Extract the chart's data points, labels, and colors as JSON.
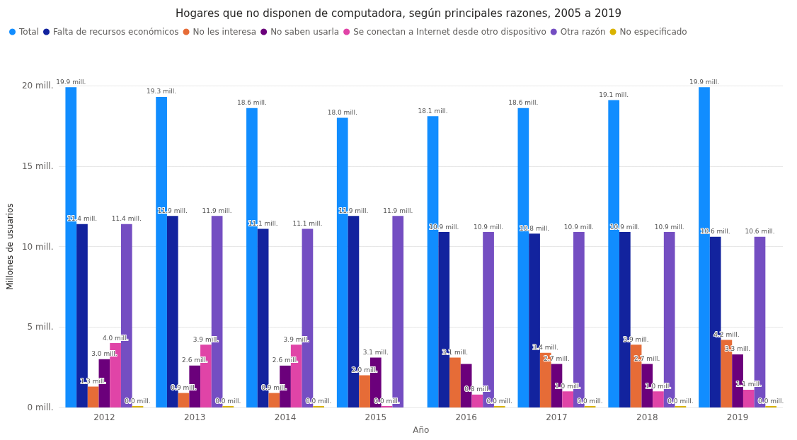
{
  "chart_data": {
    "type": "bar",
    "title": "Hogares que no disponen de computadora, según principales razones, 2005 a 2019",
    "xlabel": "Año",
    "ylabel": "Millones de usuarios",
    "categories": [
      "2012",
      "2013",
      "2014",
      "2015",
      "2016",
      "2017",
      "2018",
      "2019"
    ],
    "ylim": [
      0,
      20
    ],
    "yticks": [
      {
        "value": 0,
        "label": "0 mill."
      },
      {
        "value": 5,
        "label": "5 mill."
      },
      {
        "value": 10,
        "label": "10 mill."
      },
      {
        "value": 15,
        "label": "15 mill."
      },
      {
        "value": 20,
        "label": "20 mill."
      }
    ],
    "grid": "y",
    "legend": "top left",
    "series": [
      {
        "name": "Total",
        "color": "#118dff",
        "values": [
          19.9,
          19.3,
          18.6,
          18.0,
          18.1,
          18.6,
          19.1,
          19.9
        ],
        "value_labels": [
          "19.9 mill.",
          "19.3 mill.",
          "18.6 mill.",
          "18.0 mill.",
          "18.1 mill.",
          "18.6 mill.",
          "19.1 mill.",
          "19.9 mill."
        ]
      },
      {
        "name": "Falta de recursos económicos",
        "color": "#12239e",
        "values": [
          11.4,
          11.9,
          11.1,
          11.9,
          10.9,
          10.8,
          10.9,
          10.6
        ],
        "value_labels": [
          "11.4 mill.",
          "11.9 mill.",
          "11.1 mill.",
          "11.9 mill.",
          "10.9 mill.",
          "10.8 mill.",
          "10.9 mill.",
          "10.6 mill."
        ]
      },
      {
        "name": "No les interesa",
        "color": "#e66c37",
        "values": [
          1.3,
          0.9,
          0.9,
          2.0,
          3.1,
          3.4,
          3.9,
          4.2
        ],
        "value_labels": [
          "1.3 mill.",
          "0.9 mill.",
          "0.9 mill.",
          "2.0 mill.",
          "3.1 mill.",
          "3.4 mill.",
          "3.9 mill.",
          "4.2 mill."
        ]
      },
      {
        "name": "No saben usarla",
        "color": "#6b007b",
        "values": [
          3.0,
          2.6,
          2.6,
          3.1,
          2.7,
          2.7,
          2.7,
          3.3
        ],
        "value_labels": [
          "3.0 mill.",
          "2.6 mill.",
          "2.6 mill.",
          "3.1 mill.",
          null,
          "2.7 mill.",
          "2.7 mill.",
          "3.3 mill."
        ]
      },
      {
        "name": "Se conectan a Internet desde otro dispositivo",
        "color": "#e044a7",
        "values": [
          4.0,
          3.9,
          3.9,
          0.0,
          0.8,
          1.0,
          1.0,
          1.1
        ],
        "value_labels": [
          "4.0 mill.",
          "3.9 mill.",
          "3.9 mill.",
          "0.0 mill.",
          "0.8 mill.",
          "1.0 mill.",
          "1.0 mill.",
          "1.1 mill."
        ]
      },
      {
        "name": "Otra razón",
        "color": "#744ec2",
        "values": [
          11.4,
          11.9,
          11.1,
          11.9,
          10.9,
          10.9,
          10.9,
          10.6
        ],
        "value_labels": [
          "11.4 mill.",
          "11.9 mill.",
          "11.1 mill.",
          "11.9 mill.",
          "10.9 mill.",
          "10.9 mill.",
          "10.9 mill.",
          "10.6 mill."
        ]
      },
      {
        "name": "No especificado",
        "color": "#d9b300",
        "values": [
          0.0,
          0.0,
          0.0,
          null,
          0.0,
          0.0,
          0.0,
          0.0
        ],
        "value_labels": [
          "0.0 mill.",
          "0.0 mill.",
          "0.0 mill.",
          null,
          "0.0 mill.",
          "0.0 mill.",
          "0.0 mill.",
          "0.0 mill."
        ]
      }
    ]
  }
}
